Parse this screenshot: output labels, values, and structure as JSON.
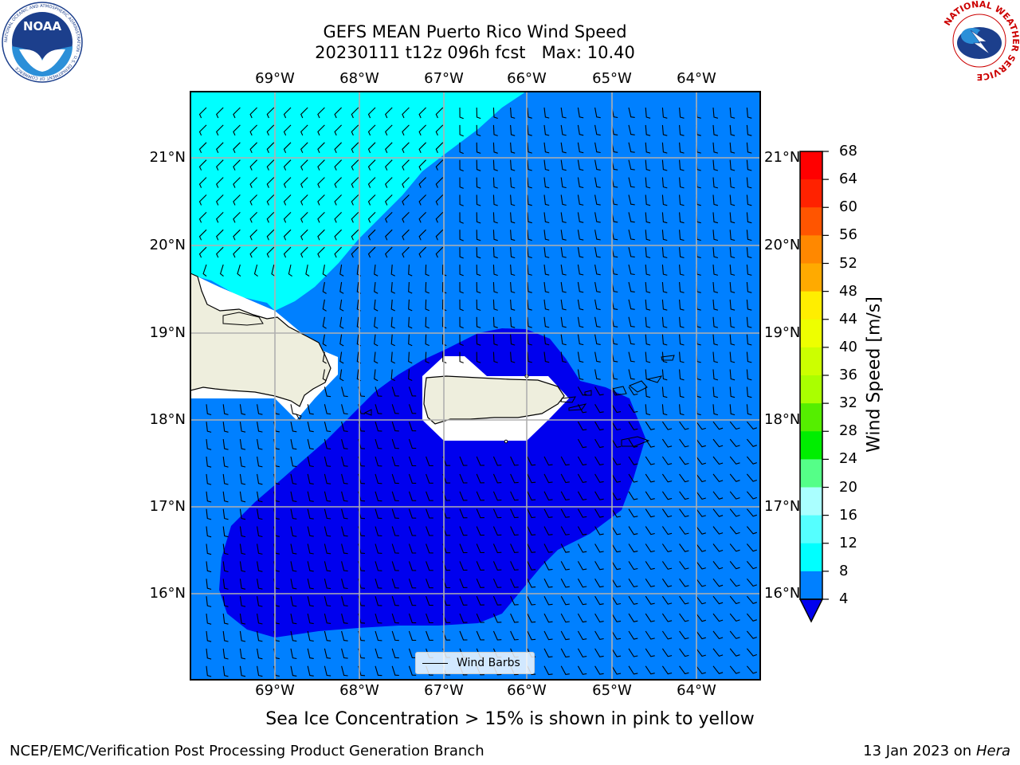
{
  "header": {
    "title": "GEFS MEAN Puerto Rico Wind Speed",
    "subtitle": "20230111 t12z 096h fcst   Max: 10.40"
  },
  "logos": {
    "noaa": {
      "text": "NOAA",
      "ring_text": "NATIONAL OCEANIC AND ATMOSPHERIC ADMINISTRATION · U.S. DEPARTMENT OF COMMERCE"
    },
    "nws": {
      "ring_text": "NATIONAL WEATHER SERVICE"
    }
  },
  "map": {
    "lon_labels": [
      "69°W",
      "68°W",
      "67°W",
      "66°W",
      "65°W",
      "64°W"
    ],
    "lat_labels": [
      "21°N",
      "20°N",
      "19°N",
      "18°N",
      "17°N",
      "16°N"
    ],
    "legend_label": "Wind Barbs",
    "fill_colors": {
      "lt4": "#0000ee",
      "4to8": "#0080ff",
      "8to12": "#00ffff",
      "land": "#eeeedd"
    }
  },
  "colorbar": {
    "ticks": [
      "68",
      "64",
      "60",
      "56",
      "52",
      "48",
      "44",
      "40",
      "36",
      "32",
      "28",
      "24",
      "20",
      "16",
      "12",
      "8",
      "4"
    ],
    "colors": [
      "#ff0000",
      "#ff2200",
      "#ff5500",
      "#ff8800",
      "#ffaa00",
      "#ffcc00",
      "#ffee00",
      "#eeff00",
      "#ccff00",
      "#aaff00",
      "#55ee00",
      "#00ee00",
      "#00dd55",
      "#55ff88",
      "#aaffff",
      "#55ffff",
      "#00ffff",
      "#0080ff",
      "#0000ee"
    ],
    "label": "Wind Speed [m/s]"
  },
  "notes": {
    "sea_ice": "Sea Ice Concentration > 15% is shown in pink to yellow",
    "footer_left": "NCEP/EMC/Verification Post Processing Product Generation Branch",
    "footer_date": "13 Jan 2023 on ",
    "footer_host": "Hera"
  }
}
